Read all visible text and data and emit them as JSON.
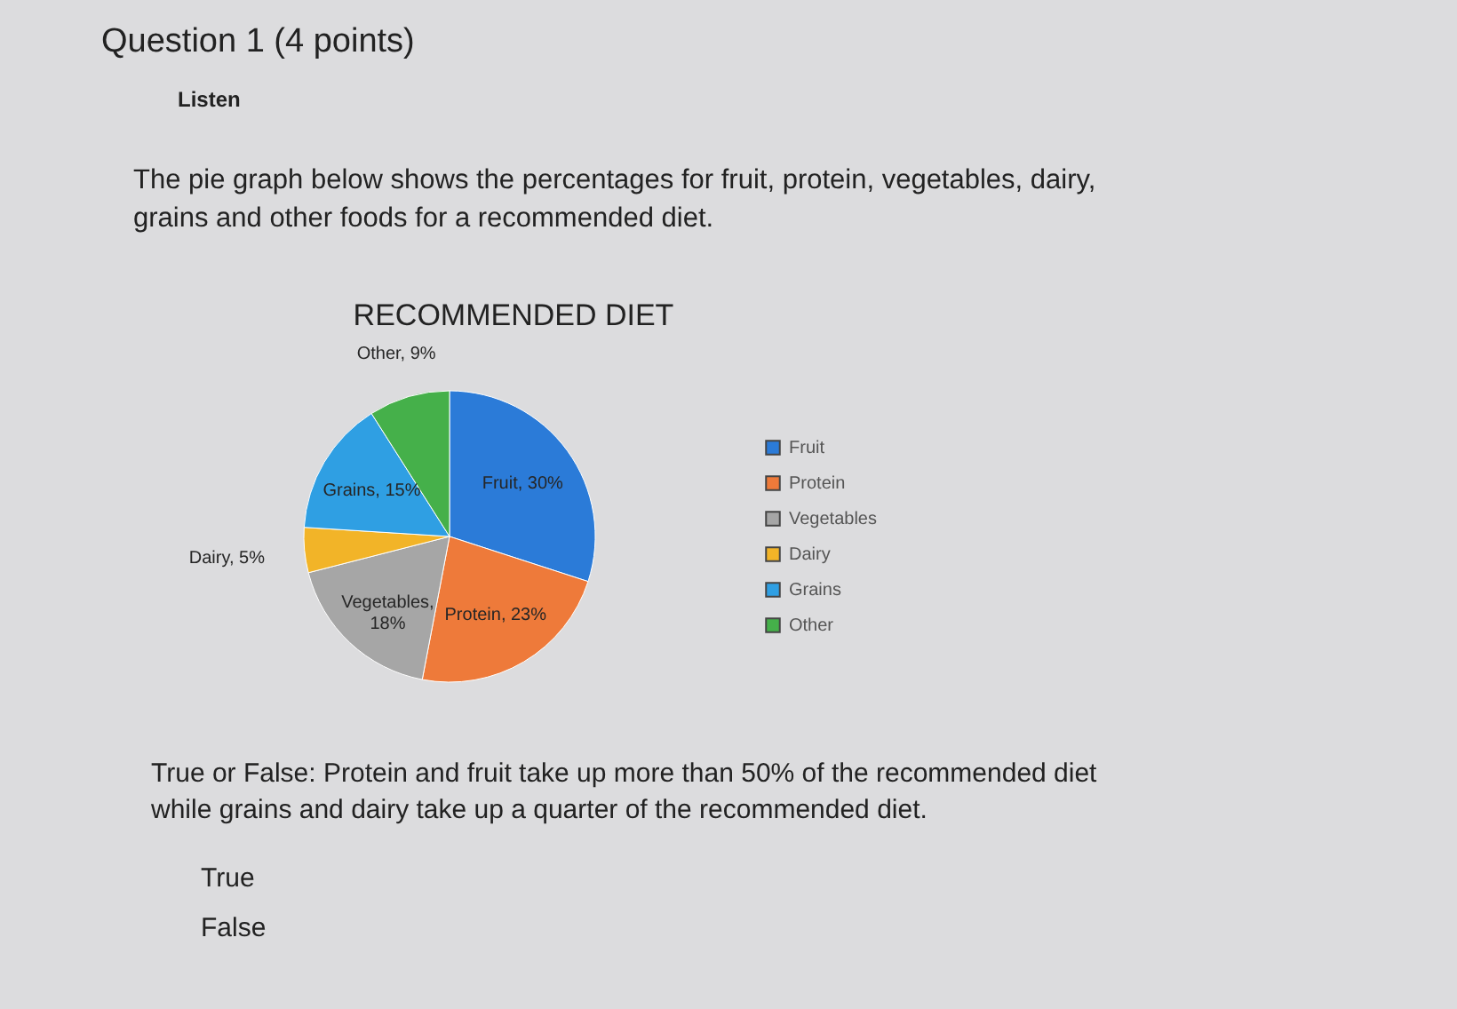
{
  "chart_data": {
    "type": "pie",
    "title": "RECOMMENDED DIET",
    "categories": [
      "Fruit",
      "Protein",
      "Vegetables",
      "Dairy",
      "Grains",
      "Other"
    ],
    "values": [
      30,
      23,
      18,
      5,
      15,
      9
    ],
    "colors": [
      "#2b7bd8",
      "#ee7a3a",
      "#a6a6a6",
      "#f2b428",
      "#2f9fe3",
      "#45b04a"
    ],
    "value_labels": [
      "Fruit, 30%",
      "Protein, 23%",
      "Vegetables, 18%",
      "Dairy, 5%",
      "Grains, 15%",
      "Other, 9%"
    ],
    "legend": "right",
    "annotations": [
      "Question 1 (4 points)",
      "Listen",
      "The pie graph below shows the percentages for fruit, protein, vegetables, dairy, grains and other foods for a recommended diet.",
      "True or False: Protein and fruit take up more than 50% of the recommended diet while grains and dairy take up a quarter of the recommended diet.",
      "True",
      "False"
    ]
  }
}
